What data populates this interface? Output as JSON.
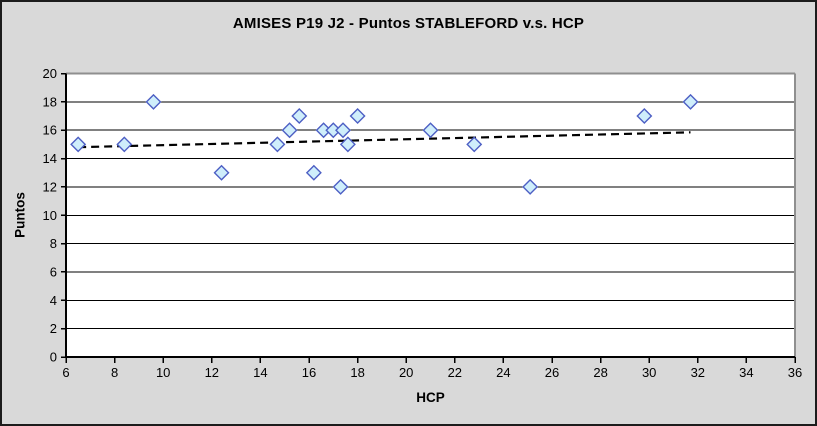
{
  "window": {
    "background_color": "#d9d9d9",
    "border_color": "#1c1c1c"
  },
  "chart_data": {
    "type": "scatter",
    "title": "AMISES P19 J2 - Puntos STABLEFORD v.s. HCP",
    "xlabel": "HCP",
    "ylabel": "Puntos",
    "xlim": [
      6,
      36
    ],
    "ylim": [
      0,
      20
    ],
    "x_ticks": [
      6,
      8,
      10,
      12,
      14,
      16,
      18,
      20,
      22,
      24,
      26,
      28,
      30,
      32,
      34,
      36
    ],
    "y_ticks": [
      0,
      2,
      4,
      6,
      8,
      10,
      12,
      14,
      16,
      18,
      20
    ],
    "grid": "horizontal-on",
    "legend_position": "none",
    "points": [
      [
        6.5,
        15
      ],
      [
        8.4,
        15
      ],
      [
        9.6,
        18
      ],
      [
        12.4,
        13
      ],
      [
        14.7,
        15
      ],
      [
        15.2,
        16
      ],
      [
        15.6,
        17
      ],
      [
        16.2,
        13
      ],
      [
        16.6,
        16
      ],
      [
        17.0,
        16
      ],
      [
        17.3,
        12
      ],
      [
        17.4,
        16
      ],
      [
        17.6,
        15
      ],
      [
        18.0,
        17
      ],
      [
        21.0,
        16
      ],
      [
        22.8,
        15
      ],
      [
        25.1,
        12
      ],
      [
        29.8,
        17
      ],
      [
        31.7,
        18
      ]
    ],
    "trendline": {
      "style": "dashed",
      "color": "#000000",
      "x1": 6.5,
      "y1": 14.8,
      "x2": 31.7,
      "y2": 15.85
    },
    "marker": {
      "shape": "diamond",
      "fill_color": "#cfeefb",
      "stroke_color": "#4d5fc4",
      "size": 14
    },
    "plot_background": "#ffffff",
    "gridline_color": "#000000",
    "axis_color": "#000000",
    "plot_border_color": "#8f8f8f"
  }
}
